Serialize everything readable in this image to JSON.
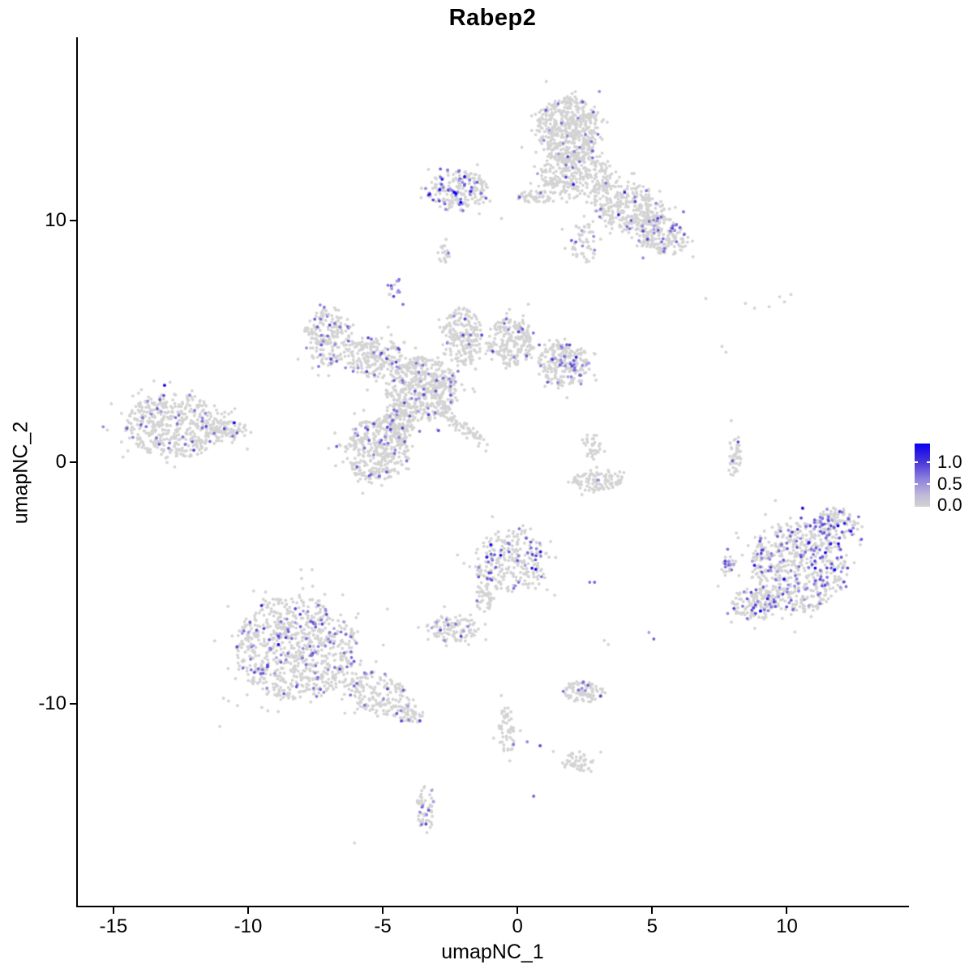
{
  "title": "Rabep2",
  "chart_data": {
    "type": "scatter",
    "title": "Rabep2",
    "xlabel": "umapNC_1",
    "ylabel": "umapNC_2",
    "xlim": [
      -16.35,
      14.5
    ],
    "ylim": [
      -18.4,
      17.6
    ],
    "grid": false,
    "xticks": {
      "values": [
        -15,
        -10,
        -5,
        0,
        5,
        10
      ],
      "labels": [
        "-15",
        "-10",
        "-5",
        "0",
        "5",
        "10"
      ]
    },
    "yticks": {
      "values": [
        -10,
        0,
        10
      ],
      "labels": [
        "-10",
        "0",
        "10"
      ]
    },
    "legend": {
      "position": "right",
      "labels": [
        "1.0",
        "0.5",
        "0.0"
      ],
      "values": [
        1.0,
        0.5,
        0.0
      ],
      "color_high": "#0000FF",
      "color_low": "#D3D3D3"
    },
    "point_radius_px": 1.9,
    "colors": {
      "base_gray": "#D3D3D3",
      "purples": [
        "#A89CE4",
        "#9287E0",
        "#7E70DC",
        "#6A5BD9",
        "#5645D5"
      ],
      "blues": [
        "#2B18E9",
        "#1000F0",
        "#0000FF"
      ]
    },
    "clusters": [
      {
        "name": "top-main-a",
        "cx": 1.87,
        "cy": 13.76,
        "rx": 1.14,
        "ry": 1.34,
        "n": 520,
        "frac": 0.05
      },
      {
        "name": "top-main-b",
        "cx": 2.17,
        "cy": 11.91,
        "rx": 1.36,
        "ry": 1.01,
        "n": 300,
        "frac": 0.05
      },
      {
        "name": "top-main-c",
        "cx": 4.13,
        "cy": 10.57,
        "rx": 1.36,
        "ry": 1.01,
        "n": 330,
        "frac": 0.07,
        "rot": -20
      },
      {
        "name": "top-main-d",
        "cx": 5.33,
        "cy": 9.4,
        "rx": 1.05,
        "ry": 0.74,
        "n": 200,
        "frac": 0.08,
        "rot": -20
      },
      {
        "name": "top-strand",
        "cx": 0.66,
        "cy": 10.97,
        "rx": 0.66,
        "ry": 0.27,
        "n": 50,
        "frac": 0.1
      },
      {
        "name": "top-tail",
        "cx": 2.47,
        "cy": 9.06,
        "rx": 0.54,
        "ry": 0.84,
        "n": 60,
        "frac": 0.05
      },
      {
        "name": "topleft",
        "cx": -2.2,
        "cy": 11.24,
        "rx": 1.14,
        "ry": 0.84,
        "n": 210,
        "frac": 0.2,
        "dark": 0.12
      },
      {
        "name": "topleft-sub",
        "cx": -2.74,
        "cy": 8.56,
        "rx": 0.24,
        "ry": 0.44,
        "n": 20,
        "frac": 0.15
      },
      {
        "name": "hotspot",
        "cx": -4.55,
        "cy": 7.21,
        "rx": 0.36,
        "ry": 0.4,
        "n": 14,
        "frac": 0.65
      },
      {
        "name": "mid-nw-arm",
        "cx": -7.02,
        "cy": 5.2,
        "rx": 0.9,
        "ry": 1.17,
        "n": 220,
        "frac": 0.1
      },
      {
        "name": "mid-arm2",
        "cx": -5.36,
        "cy": 4.36,
        "rx": 1.05,
        "ry": 0.84,
        "n": 200,
        "frac": 0.07
      },
      {
        "name": "mid-core",
        "cx": -3.55,
        "cy": 3.02,
        "rx": 1.36,
        "ry": 1.34,
        "n": 550,
        "frac": 0.07
      },
      {
        "name": "mid-up-arm",
        "cx": -2.05,
        "cy": 5.2,
        "rx": 0.75,
        "ry": 1.17,
        "n": 220,
        "frac": 0.05
      },
      {
        "name": "mid-ne-arm",
        "cx": -0.24,
        "cy": 5.03,
        "rx": 0.9,
        "ry": 1.01,
        "n": 220,
        "frac": 0.05
      },
      {
        "name": "mid-right-arm",
        "cx": 1.72,
        "cy": 4.03,
        "rx": 0.96,
        "ry": 0.94,
        "n": 230,
        "frac": 0.12
      },
      {
        "name": "mid-sw",
        "cx": -5.21,
        "cy": 0.5,
        "rx": 1.2,
        "ry": 1.34,
        "n": 380,
        "frac": 0.08
      },
      {
        "name": "mid-streak",
        "cx": -1.9,
        "cy": 1.34,
        "rx": 1.05,
        "ry": 0.22,
        "n": 60,
        "frac": 0.02,
        "rot": -40
      },
      {
        "name": "mid-bridge",
        "cx": -4.46,
        "cy": 1.51,
        "rx": 0.6,
        "ry": 0.67,
        "n": 120,
        "frac": 0.06
      },
      {
        "name": "left",
        "cx": -12.74,
        "cy": 1.51,
        "rx": 1.81,
        "ry": 1.34,
        "n": 480,
        "frac": 0.08
      },
      {
        "name": "left-tail",
        "cx": -10.72,
        "cy": 1.34,
        "rx": 0.75,
        "ry": 0.4,
        "n": 80,
        "frac": 0.04
      },
      {
        "name": "hook-top",
        "cx": 2.71,
        "cy": 0.67,
        "rx": 0.36,
        "ry": 0.6,
        "n": 35,
        "frac": 0
      },
      {
        "name": "hook-base",
        "cx": 2.92,
        "cy": -0.74,
        "rx": 0.99,
        "ry": 0.44,
        "n": 110,
        "frac": 0.01,
        "rot": 5
      },
      {
        "name": "right-strand",
        "cx": 8.04,
        "cy": 0.34,
        "rx": 0.27,
        "ry": 0.94,
        "n": 45,
        "frac": 0.04
      },
      {
        "name": "right-main",
        "cx": 10.45,
        "cy": -4.36,
        "rx": 1.81,
        "ry": 1.85,
        "n": 650,
        "frac": 0.2,
        "dark": 0.06
      },
      {
        "name": "right-ne",
        "cx": 11.81,
        "cy": -2.52,
        "rx": 0.9,
        "ry": 0.6,
        "n": 120,
        "frac": 0.25,
        "dark": 0.08,
        "rot": -20
      },
      {
        "name": "right-sw",
        "cx": 8.8,
        "cy": -5.87,
        "rx": 0.9,
        "ry": 0.67,
        "n": 130,
        "frac": 0.2,
        "dark": 0.05
      },
      {
        "name": "right-nub",
        "cx": 7.8,
        "cy": -4.3,
        "rx": 0.24,
        "ry": 0.47,
        "n": 30,
        "frac": 0.3
      },
      {
        "name": "botleft",
        "cx": -8.22,
        "cy": -7.72,
        "rx": 2.26,
        "ry": 2.18,
        "n": 850,
        "frac": 0.11
      },
      {
        "name": "botleft-tail",
        "cx": -5.21,
        "cy": -9.56,
        "rx": 1.36,
        "ry": 0.84,
        "n": 180,
        "frac": 0.08,
        "rot": -25
      },
      {
        "name": "botleft-end",
        "cx": -4.01,
        "cy": -10.4,
        "rx": 0.54,
        "ry": 0.4,
        "n": 50,
        "frac": 0.1
      },
      {
        "name": "botmid-small",
        "cx": -2.35,
        "cy": -6.88,
        "rx": 0.9,
        "ry": 0.6,
        "n": 110,
        "frac": 0.07
      },
      {
        "name": "botcenter",
        "cx": -0.24,
        "cy": -4.03,
        "rx": 1.36,
        "ry": 1.34,
        "n": 280,
        "frac": 0.14,
        "dark": 0.08
      },
      {
        "name": "botcenter-tail",
        "cx": -1.23,
        "cy": -5.6,
        "rx": 0.3,
        "ry": 0.74,
        "n": 45,
        "frac": 0.02
      },
      {
        "name": "low-strand",
        "cx": -0.39,
        "cy": -11.07,
        "rx": 0.33,
        "ry": 0.94,
        "n": 55,
        "frac": 0
      },
      {
        "name": "low-comma",
        "cx": 2.23,
        "cy": -12.42,
        "rx": 0.6,
        "ry": 0.4,
        "n": 50,
        "frac": 0
      },
      {
        "name": "bottom-strand",
        "cx": -3.4,
        "cy": -14.26,
        "rx": 0.33,
        "ry": 1.01,
        "n": 60,
        "frac": 0.12
      },
      {
        "name": "botright-small",
        "cx": 2.41,
        "cy": -9.5,
        "rx": 0.75,
        "ry": 0.47,
        "n": 90,
        "frac": 0.08
      }
    ],
    "singles": [
      [
        -4.25,
        6.54,
        "p"
      ],
      [
        2.68,
        -4.97,
        "p"
      ],
      [
        2.86,
        -4.97,
        "p"
      ],
      [
        4.88,
        -7.05,
        "p"
      ],
      [
        5.06,
        -7.32,
        "p"
      ],
      [
        0.6,
        -13.83,
        "p"
      ],
      [
        -0.15,
        -11.68,
        "p"
      ],
      [
        0.36,
        -11.58,
        "p"
      ],
      [
        0.84,
        -11.74,
        "p"
      ],
      [
        8.19,
        0.84,
        "p"
      ],
      [
        -2.86,
        -6.95,
        "p"
      ],
      [
        -2.71,
        -7.38,
        "p"
      ],
      [
        2.98,
        -0.74,
        "p"
      ],
      [
        -0.99,
        -3.42,
        "b"
      ],
      [
        -1.14,
        -3.93,
        "b"
      ],
      [
        7.59,
        4.8,
        "g"
      ],
      [
        7.74,
        4.56,
        "g"
      ],
      [
        6.99,
        6.78,
        "g"
      ],
      [
        8.46,
        6.58,
        "g"
      ],
      [
        9.34,
        6.44,
        "g"
      ],
      [
        9.73,
        6.85,
        "g"
      ],
      [
        9.91,
        6.64,
        "g"
      ],
      [
        10.15,
        6.95,
        "g"
      ],
      [
        8.8,
        6.38,
        "g"
      ],
      [
        -6.05,
        -15.77,
        "g"
      ],
      [
        1.33,
        -11.98,
        "g"
      ],
      [
        -2.65,
        9.23,
        "g"
      ],
      [
        -14.7,
        0.84,
        "g"
      ],
      [
        -14.46,
        0.47,
        "g"
      ],
      [
        3.22,
        -7.38,
        "g"
      ],
      [
        3.37,
        -7.55,
        "g"
      ]
    ]
  }
}
